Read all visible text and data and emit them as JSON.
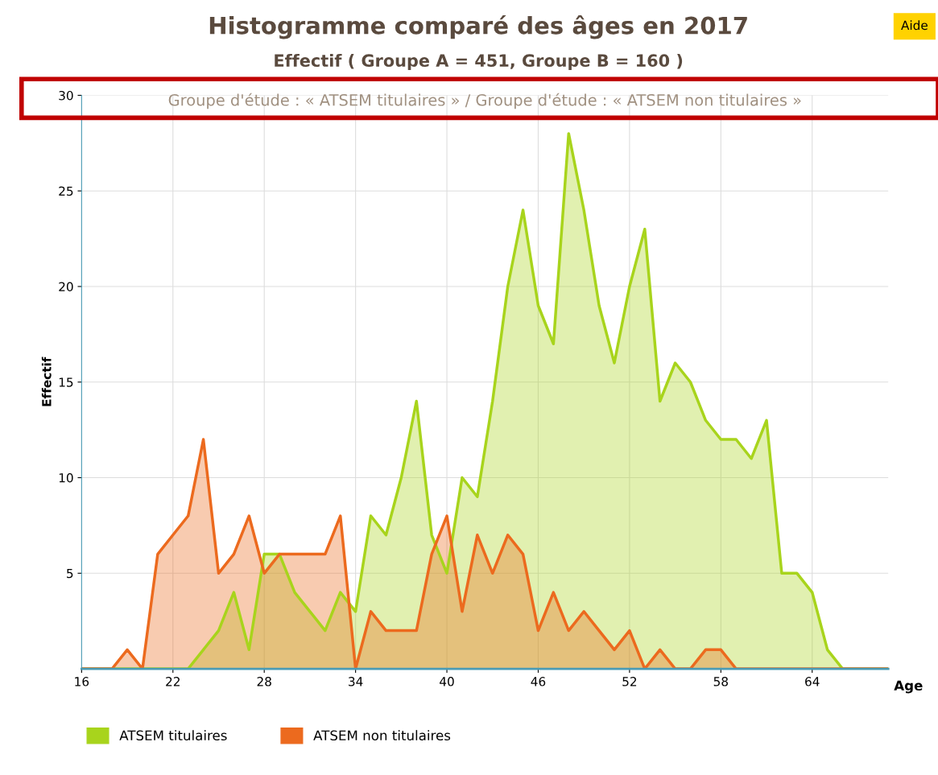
{
  "chart_data": {
    "type": "area",
    "title": "Histogramme comparé des âges en 2017",
    "subtitle": "Effectif ( Groupe A = 451, Groupe B = 160 )",
    "xlabel": "Age",
    "ylabel": "Effectif",
    "annotations": [
      "Groupe d'étude : « ATSEM titulaires » / Groupe d'étude : « ATSEM non titulaires »",
      "Aide"
    ],
    "x": [
      16,
      17,
      18,
      19,
      20,
      21,
      22,
      23,
      24,
      25,
      26,
      27,
      28,
      29,
      30,
      31,
      32,
      33,
      34,
      35,
      36,
      37,
      38,
      39,
      40,
      41,
      42,
      43,
      44,
      45,
      46,
      47,
      48,
      49,
      50,
      51,
      52,
      53,
      54,
      55,
      56,
      57,
      58,
      59,
      60,
      61,
      62,
      63,
      64,
      65,
      66,
      67,
      68,
      69
    ],
    "series": [
      {
        "name": "ATSEM titulaires",
        "color": "#a8d41c",
        "values": [
          0,
          0,
          0,
          0,
          0,
          0,
          0,
          0,
          1,
          2,
          4,
          1,
          6,
          6,
          4,
          3,
          2,
          4,
          3,
          8,
          7,
          10,
          14,
          7,
          5,
          10,
          9,
          14,
          20,
          24,
          19,
          17,
          28,
          24,
          19,
          16,
          20,
          23,
          14,
          16,
          15,
          13,
          12,
          12,
          11,
          13,
          5,
          5,
          4,
          1,
          0,
          0,
          0,
          0
        ]
      },
      {
        "name": "ATSEM non titulaires",
        "color": "#ec6a1e",
        "values": [
          0,
          0,
          0,
          1,
          0,
          6,
          7,
          8,
          12,
          5,
          6,
          8,
          5,
          6,
          6,
          6,
          6,
          8,
          0,
          3,
          2,
          2,
          2,
          6,
          8,
          3,
          7,
          5,
          7,
          6,
          2,
          4,
          2,
          3,
          2,
          1,
          2,
          0,
          1,
          0,
          0,
          1,
          1,
          0,
          0,
          0,
          0,
          0,
          0,
          0,
          0,
          0,
          0,
          0
        ]
      }
    ],
    "xlim": [
      16,
      69
    ],
    "xticks": [
      16,
      22,
      28,
      34,
      40,
      46,
      52,
      58,
      64
    ],
    "ylim": [
      0,
      30
    ],
    "yticks": [
      5,
      10,
      15,
      20,
      25,
      30
    ],
    "grid": true,
    "legend": "bottom left"
  }
}
